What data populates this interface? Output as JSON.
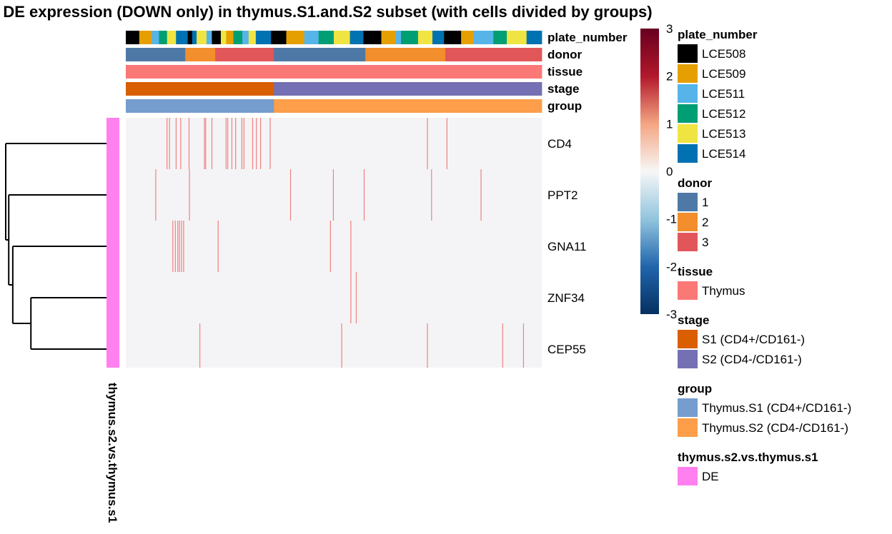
{
  "chart_data": {
    "type": "heatmap",
    "title": "k DE expression (DOWN only) in thymus.S1.and.S2 subset (with cells divided by groups)",
    "rows": [
      "CD4",
      "PPT2",
      "GNA11",
      "ZNF34",
      "CEP55"
    ],
    "row_annotation": {
      "name": "thymus.s2.vs.thymus.s1",
      "value": "DE",
      "color": "#FF80EE"
    },
    "column_annotations": [
      {
        "name": "plate_number",
        "levels": [
          {
            "label": "LCE508",
            "color": "#000000"
          },
          {
            "label": "LCE509",
            "color": "#E69F00"
          },
          {
            "label": "LCE511",
            "color": "#56B4E9"
          },
          {
            "label": "LCE512",
            "color": "#009E73"
          },
          {
            "label": "LCE513",
            "color": "#F0E442"
          },
          {
            "label": "LCE514",
            "color": "#0072B2"
          }
        ],
        "runs": [
          {
            "level": "LCE508",
            "frac": 0.03
          },
          {
            "level": "LCE509",
            "frac": 0.028
          },
          {
            "level": "LCE511",
            "frac": 0.016
          },
          {
            "level": "LCE512",
            "frac": 0.018
          },
          {
            "level": "LCE513",
            "frac": 0.02
          },
          {
            "level": "LCE514",
            "frac": 0.026
          },
          {
            "level": "LCE508",
            "frac": 0.01
          },
          {
            "level": "LCE514",
            "frac": 0.01
          },
          {
            "level": "LCE513",
            "frac": 0.022
          },
          {
            "level": "LCE511",
            "frac": 0.012
          },
          {
            "level": "LCE508",
            "frac": 0.02
          },
          {
            "level": "LCE513",
            "frac": 0.012
          },
          {
            "level": "LCE509",
            "frac": 0.016
          },
          {
            "level": "LCE512",
            "frac": 0.02
          },
          {
            "level": "LCE511",
            "frac": 0.014
          },
          {
            "level": "LCE513",
            "frac": 0.016
          },
          {
            "level": "LCE514",
            "frac": 0.034
          },
          {
            "level": "LCE508",
            "frac": 0.034
          },
          {
            "level": "LCE509",
            "frac": 0.04
          },
          {
            "level": "LCE511",
            "frac": 0.032
          },
          {
            "level": "LCE512",
            "frac": 0.034
          },
          {
            "level": "LCE513",
            "frac": 0.036
          },
          {
            "level": "LCE514",
            "frac": 0.03
          },
          {
            "level": "LCE508",
            "frac": 0.04
          },
          {
            "level": "LCE509",
            "frac": 0.032
          },
          {
            "level": "LCE511",
            "frac": 0.012
          },
          {
            "level": "LCE512",
            "frac": 0.038
          },
          {
            "level": "LCE513",
            "frac": 0.032
          },
          {
            "level": "LCE514",
            "frac": 0.026
          },
          {
            "level": "LCE508",
            "frac": 0.038
          },
          {
            "level": "LCE509",
            "frac": 0.028
          },
          {
            "level": "LCE511",
            "frac": 0.044
          },
          {
            "level": "LCE512",
            "frac": 0.03
          },
          {
            "level": "LCE513",
            "frac": 0.044
          },
          {
            "level": "LCE514",
            "frac": 0.034
          }
        ]
      },
      {
        "name": "donor",
        "levels": [
          {
            "label": "1",
            "color": "#4E79A7"
          },
          {
            "label": "2",
            "color": "#F28E2B"
          },
          {
            "label": "3",
            "color": "#E15759"
          }
        ],
        "runs": [
          {
            "level": "1",
            "frac": 0.143
          },
          {
            "level": "2",
            "frac": 0.072
          },
          {
            "level": "3",
            "frac": 0.141
          },
          {
            "level": "1",
            "frac": 0.22
          },
          {
            "level": "2",
            "frac": 0.192
          },
          {
            "level": "3",
            "frac": 0.232
          }
        ]
      },
      {
        "name": "tissue",
        "levels": [
          {
            "label": "Thymus",
            "color": "#FA7876"
          }
        ],
        "runs": [
          {
            "level": "Thymus",
            "frac": 1.0
          }
        ]
      },
      {
        "name": "stage",
        "levels": [
          {
            "label": "S1 (CD4+/CD161-)",
            "color": "#D95F02"
          },
          {
            "label": "S2 (CD4-/CD161-)",
            "color": "#7570B3"
          }
        ],
        "runs": [
          {
            "level": "S1 (CD4+/CD161-)",
            "frac": 0.356
          },
          {
            "level": "S2 (CD4-/CD161-)",
            "frac": 0.644
          }
        ]
      },
      {
        "name": "group",
        "levels": [
          {
            "label": "Thymus.S1 (CD4+/CD161-)",
            "color": "#759DCD"
          },
          {
            "label": "Thymus.S2 (CD4-/CD161-)",
            "color": "#FC9E4A"
          }
        ],
        "runs": [
          {
            "level": "Thymus.S1 (CD4+/CD161-)",
            "frac": 0.356
          },
          {
            "level": "Thymus.S2 (CD4-/CD161-)",
            "frac": 0.644
          }
        ]
      }
    ],
    "values_note_free": true,
    "background_value": 0,
    "expressing_cells": {
      "CD4": {
        "value": 1.2,
        "cols": [
          0.098,
          0.104,
          0.12,
          0.131,
          0.151,
          0.188,
          0.191,
          0.206,
          0.24,
          0.244,
          0.254,
          0.263,
          0.278,
          0.283,
          0.304,
          0.313,
          0.323,
          0.346,
          0.724,
          0.771
        ]
      },
      "PPT2": {
        "value": 1.2,
        "cols": [
          0.071,
          0.152,
          0.395,
          0.498,
          0.572,
          0.734,
          0.853
        ]
      },
      "GNA11": {
        "value": 1.2,
        "cols": [
          0.112,
          0.118,
          0.124,
          0.128,
          0.133,
          0.138,
          0.221,
          0.491,
          0.54
        ]
      },
      "ZNF34": {
        "value": 1.2,
        "cols": [
          0.54,
          0.553
        ]
      },
      "CEP55": {
        "value": 1.2,
        "cols": [
          0.177,
          0.518,
          0.724,
          0.905,
          0.955
        ]
      }
    },
    "color_scale": {
      "min": -3,
      "max": 3,
      "ticks": [
        "3",
        "2",
        "1",
        "0",
        "-1",
        "-2",
        "-3"
      ],
      "stops": [
        {
          "v": -3,
          "color": "#053061"
        },
        {
          "v": -2,
          "color": "#2166AC"
        },
        {
          "v": -1,
          "color": "#92C5DE"
        },
        {
          "v": 0,
          "color": "#F7F7F7"
        },
        {
          "v": 1,
          "color": "#F4A582"
        },
        {
          "v": 2,
          "color": "#B2182B"
        },
        {
          "v": 3,
          "color": "#67001F"
        }
      ],
      "cell_background": "#F4F4F6"
    },
    "dendrogram": {
      "merges": [
        {
          "a": "ZNF34",
          "b": "CEP55",
          "height": 0.75
        },
        {
          "a": "GNA11",
          "b": "ZNF34+CEP55",
          "height": 0.93
        },
        {
          "a": "PPT2",
          "b": "GNA11+ZNF34+CEP55",
          "height": 0.97
        },
        {
          "a": "CD4",
          "b": "PPT2+GNA11+ZNF34+CEP55",
          "height": 1.0
        }
      ]
    },
    "legend_placement": "right"
  }
}
